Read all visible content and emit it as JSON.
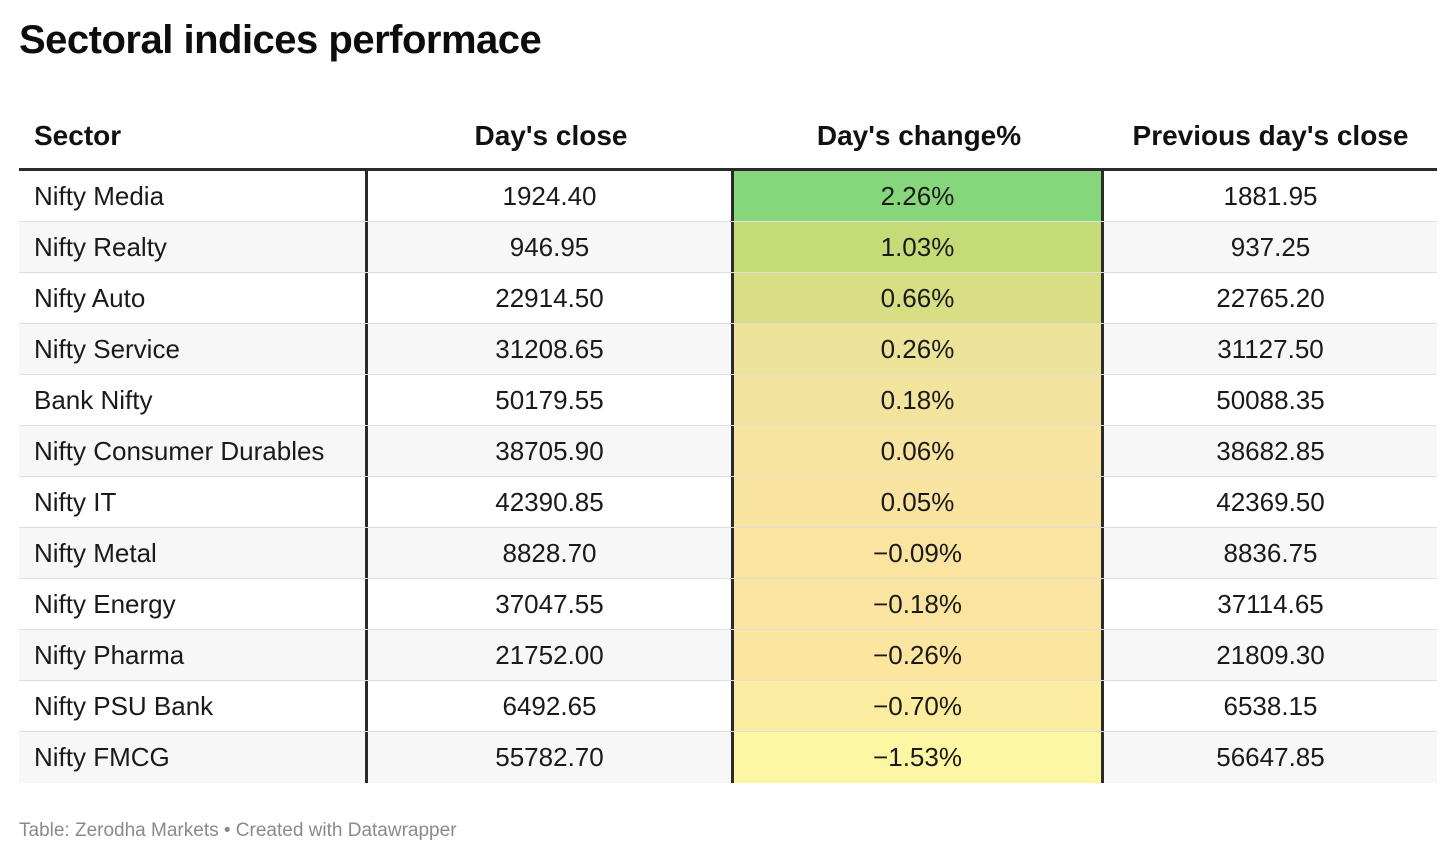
{
  "title": "Sectoral indices performace",
  "footer": "Table: Zerodha Markets • Created with Datawrapper",
  "columns": [
    "Sector",
    "Day's close",
    "Day's change%",
    "Previous day's close"
  ],
  "heat_colors": {
    "max": "#86d67c",
    "mid_high": "#c4db78",
    "mid": "#f3e29a",
    "min": "#fdf7a3"
  },
  "chart_data": {
    "type": "table",
    "title": "Sectoral indices performace",
    "columns": [
      "Sector",
      "Day's close",
      "Day's change%",
      "Previous day's close"
    ],
    "rows": [
      {
        "sector": "Nifty Media",
        "close": "1924.40",
        "change": "2.26%",
        "change_value": 2.26,
        "prev": "1881.95",
        "color": "#86d67c"
      },
      {
        "sector": "Nifty Realty",
        "close": "946.95",
        "change": "1.03%",
        "change_value": 1.03,
        "prev": "937.25",
        "color": "#c4db78"
      },
      {
        "sector": "Nifty Auto",
        "close": "22914.50",
        "change": "0.66%",
        "change_value": 0.66,
        "prev": "22765.20",
        "color": "#d8de84"
      },
      {
        "sector": "Nifty Service",
        "close": "31208.65",
        "change": "0.26%",
        "change_value": 0.26,
        "prev": "31127.50",
        "color": "#ede29a"
      },
      {
        "sector": "Bank Nifty",
        "close": "50179.55",
        "change": "0.18%",
        "change_value": 0.18,
        "prev": "50088.35",
        "color": "#f2e49d"
      },
      {
        "sector": "Nifty Consumer Durables",
        "close": "38705.90",
        "change": "0.06%",
        "change_value": 0.06,
        "prev": "38682.85",
        "color": "#f7e4a0"
      },
      {
        "sector": "Nifty IT",
        "close": "42390.85",
        "change": "0.05%",
        "change_value": 0.05,
        "prev": "42369.50",
        "color": "#f8e4a0"
      },
      {
        "sector": "Nifty Metal",
        "close": "8828.70",
        "change": "−0.09%",
        "change_value": -0.09,
        "prev": "8836.75",
        "color": "#fbe4a0"
      },
      {
        "sector": "Nifty Energy",
        "close": "37047.55",
        "change": "−0.18%",
        "change_value": -0.18,
        "prev": "37114.65",
        "color": "#fbe49f"
      },
      {
        "sector": "Nifty Pharma",
        "close": "21752.00",
        "change": "−0.26%",
        "change_value": -0.26,
        "prev": "21809.30",
        "color": "#fce59f"
      },
      {
        "sector": "Nifty PSU Bank",
        "close": "6492.65",
        "change": "−0.70%",
        "change_value": -0.7,
        "prev": "6538.15",
        "color": "#fcec9f"
      },
      {
        "sector": "Nifty FMCG",
        "close": "55782.70",
        "change": "−1.53%",
        "change_value": -1.53,
        "prev": "56647.85",
        "color": "#fdf7a3"
      }
    ]
  }
}
